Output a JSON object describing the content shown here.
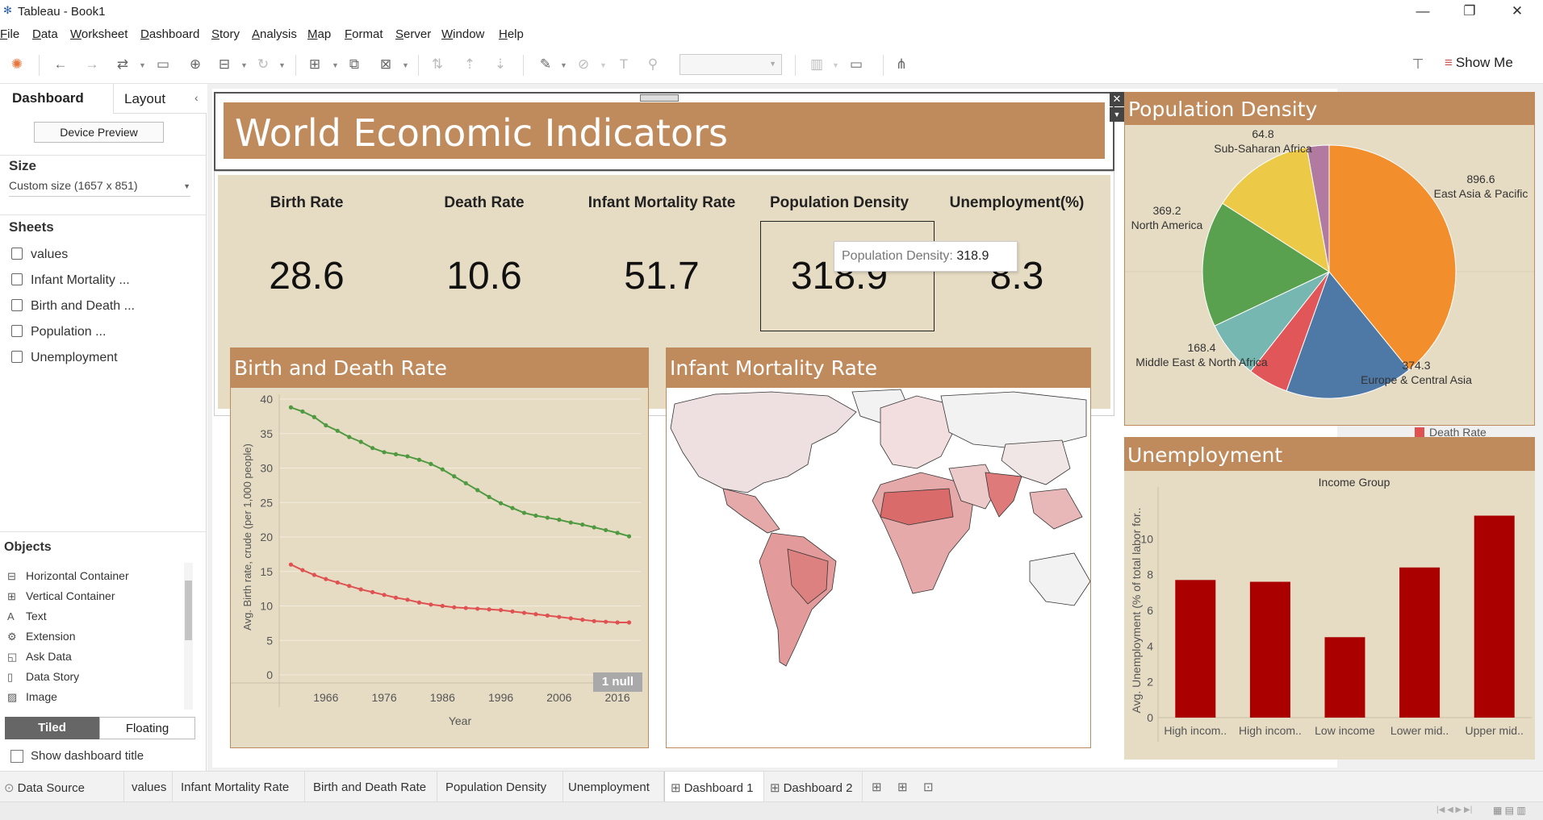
{
  "window": {
    "title": "Tableau - Book1",
    "min": "—",
    "restore": "❐",
    "close": "✕"
  },
  "menu": [
    "File",
    "Data",
    "Worksheet",
    "Dashboard",
    "Story",
    "Analysis",
    "Map",
    "Format",
    "Server",
    "Window",
    "Help"
  ],
  "toolbar": {
    "show_me": "Show Me"
  },
  "left": {
    "tab_dashboard": "Dashboard",
    "tab_layout": "Layout",
    "device_preview": "Device Preview",
    "size_header": "Size",
    "size_value": "Custom size (1657 x 851)",
    "sheets_header": "Sheets",
    "sheets": [
      "values",
      "Infant Mortality ...",
      "Birth and Death ...",
      "Population ...",
      "Unemployment"
    ],
    "objects_header": "Objects",
    "objects": [
      {
        "label": "Horizontal Container",
        "icon": "horizontal-container-icon"
      },
      {
        "label": "Vertical Container",
        "icon": "vertical-container-icon"
      },
      {
        "label": "Text",
        "icon": "text-icon"
      },
      {
        "label": "Extension",
        "icon": "extension-icon"
      },
      {
        "label": "Ask Data",
        "icon": "ask-data-icon"
      },
      {
        "label": "Data Story",
        "icon": "data-story-icon"
      },
      {
        "label": "Image",
        "icon": "image-icon"
      }
    ],
    "tiled": "Tiled",
    "floating": "Floating",
    "show_title": "Show dashboard title"
  },
  "dashboard": {
    "title": "World Economic Indicators",
    "kpis": [
      {
        "label": "Birth Rate",
        "value": "28.6"
      },
      {
        "label": "Death Rate",
        "value": "10.6"
      },
      {
        "label": "Infant Mortality Rate",
        "value": "51.7"
      },
      {
        "label": "Population Density",
        "value": "318.9"
      },
      {
        "label": "Unemployment(%)",
        "value": "8.3"
      }
    ],
    "tooltip": {
      "label": "Population Density:",
      "value": "318.9"
    },
    "birth_death_title": "Birth and Death Rate",
    "infant_title": "Infant Mortality Rate",
    "density_title": "Population Density",
    "unemployment_title": "Unemployment",
    "null_badge": "1 null",
    "legend_death": "Death Rate"
  },
  "colors": {
    "header": "#c08b5c",
    "panel": "#e6dcc4",
    "birth": "#4f9a41",
    "death": "#e05252",
    "bar": "#aa0000"
  },
  "chart_data": [
    {
      "type": "line",
      "title": "",
      "xlabel": "Year",
      "ylabel": "Avg. Birth rate, crude (per 1,000 people)",
      "x_ticks": [
        "1966",
        "1976",
        "1986",
        "1996",
        "2006",
        "2016"
      ],
      "y_ticks": [
        "0",
        "5",
        "10",
        "15",
        "20",
        "25",
        "30",
        "35",
        "40"
      ],
      "ylim": [
        0,
        40
      ],
      "xlim": [
        1958,
        2020
      ],
      "series": [
        {
          "values_x": [
            1960,
            1962,
            1964,
            1966,
            1968,
            1970,
            1972,
            1974,
            1976,
            1978,
            1980,
            1982,
            1984,
            1986,
            1988,
            1990,
            1992,
            1994,
            1996,
            1998,
            2000,
            2002,
            2004,
            2006,
            2008,
            2010,
            2012,
            2014,
            2016,
            2018
          ],
          "values": [
            38.8,
            38.2,
            37.4,
            36.2,
            35.4,
            34.5,
            33.8,
            32.9,
            32.3,
            32.0,
            31.7,
            31.2,
            30.6,
            29.8,
            28.8,
            27.8,
            26.8,
            25.8,
            24.9,
            24.2,
            23.5,
            23.1,
            22.8,
            22.5,
            22.1,
            21.8,
            21.4,
            21.0,
            20.6,
            20.1
          ]
        },
        {
          "values_x": [
            1960,
            1962,
            1964,
            1966,
            1968,
            1970,
            1972,
            1974,
            1976,
            1978,
            1980,
            1982,
            1984,
            1986,
            1988,
            1990,
            1992,
            1994,
            1996,
            1998,
            2000,
            2002,
            2004,
            2006,
            2008,
            2010,
            2012,
            2014,
            2016,
            2018
          ],
          "values": [
            16.0,
            15.2,
            14.5,
            13.9,
            13.4,
            12.9,
            12.4,
            12.0,
            11.6,
            11.2,
            10.9,
            10.5,
            10.2,
            10.0,
            9.8,
            9.7,
            9.6,
            9.5,
            9.4,
            9.2,
            9.0,
            8.8,
            8.6,
            8.4,
            8.2,
            8.0,
            7.8,
            7.7,
            7.6,
            7.6
          ]
        }
      ]
    },
    {
      "type": "pie",
      "title": "",
      "slices": [
        {
          "label": "East Asia & Pacific",
          "value": 896.6,
          "color": "#f28e2b"
        },
        {
          "label": "Europe & Central Asia",
          "value": 374.3,
          "color": "#4e79a7"
        },
        {
          "label": "",
          "value": 118,
          "color": "#e15759"
        },
        {
          "label": "Middle East & North Africa",
          "value": 168.4,
          "color": "#76b7b2"
        },
        {
          "label": "North America",
          "value": 369.2,
          "color": "#59a14f"
        },
        {
          "label": "",
          "value": 300,
          "color": "#edc948"
        },
        {
          "label": "Sub-Saharan Africa",
          "value": 64.8,
          "color": "#b07aa1"
        }
      ],
      "value_labels": [
        "896.6",
        "374.3",
        "168.4",
        "369.2",
        "64.8"
      ]
    },
    {
      "type": "bar",
      "title": "Income Group",
      "ylabel": "Avg. Unemployment (% of total labor for..",
      "categories": [
        "High incom..",
        "High incom..",
        "Low income",
        "Lower mid..",
        "Upper mid.."
      ],
      "values": [
        7.7,
        7.6,
        4.5,
        8.4,
        11.3
      ],
      "y_ticks": [
        "0",
        "2",
        "4",
        "6",
        "8",
        "10"
      ],
      "ylim": [
        0,
        12
      ]
    }
  ],
  "sheet_tabs": [
    "Data Source",
    "values",
    "Infant Mortality Rate",
    "Birth and Death Rate",
    "Population Density",
    "Unemployment",
    "Dashboard 1",
    "Dashboard 2"
  ]
}
